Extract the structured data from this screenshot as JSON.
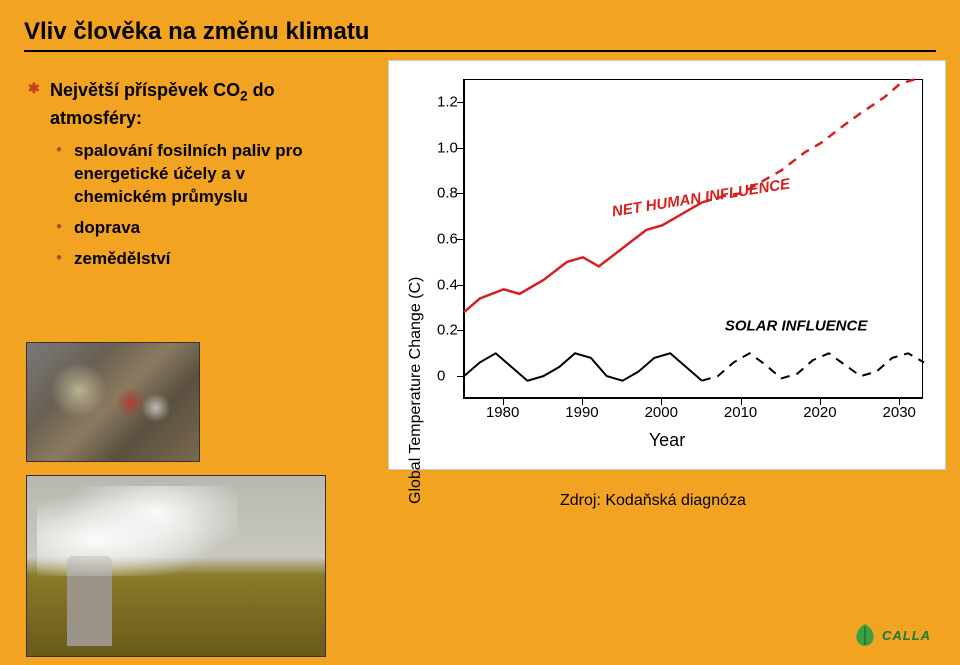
{
  "title": "Vliv člověka na změnu klimatu",
  "bullets": {
    "main": "Největší příspěvek CO",
    "main_sub": "2",
    "main_tail": " do atmosféry:",
    "items": [
      "spalování fosilních paliv pro energetické účely  a v chemickém průmyslu",
      "doprava",
      "zemědělství"
    ]
  },
  "chart": {
    "type": "line",
    "ylabel": "Global Temperature Change (C)",
    "xlabel": "Year",
    "xlim": [
      1975,
      2033
    ],
    "ylim": [
      -0.1,
      1.3
    ],
    "xticks": [
      1980,
      1990,
      2000,
      2010,
      2020,
      2030
    ],
    "yticks": [
      0,
      0.2,
      0.4,
      0.6,
      0.8,
      1.0,
      1.2
    ],
    "yticks_labels": [
      "0",
      "0.2",
      "0.4",
      "0.6",
      "0.8",
      "1.0",
      "1.2"
    ],
    "background_color": "#ffffff",
    "axis_color": "#000000",
    "series": [
      {
        "name": "NET HUMAN INFLUENCE",
        "color": "#d62020",
        "label_pos": {
          "x": 2005,
          "y": 0.78,
          "rotate": -9
        },
        "points": [
          [
            1975,
            0.28
          ],
          [
            1977,
            0.34
          ],
          [
            1980,
            0.38
          ],
          [
            1982,
            0.36
          ],
          [
            1985,
            0.42
          ],
          [
            1988,
            0.5
          ],
          [
            1990,
            0.52
          ],
          [
            1992,
            0.48
          ],
          [
            1995,
            0.56
          ],
          [
            1998,
            0.64
          ],
          [
            2000,
            0.66
          ],
          [
            2003,
            0.72
          ],
          [
            2005,
            0.76
          ]
        ],
        "points_dashed": [
          [
            2005,
            0.76
          ],
          [
            2008,
            0.79
          ],
          [
            2010,
            0.8
          ],
          [
            2013,
            0.86
          ],
          [
            2015,
            0.9
          ],
          [
            2018,
            0.98
          ],
          [
            2020,
            1.02
          ],
          [
            2023,
            1.1
          ],
          [
            2025,
            1.15
          ],
          [
            2028,
            1.22
          ],
          [
            2030,
            1.28
          ],
          [
            2032,
            1.3
          ]
        ],
        "line_width": 2.5
      },
      {
        "name": "SOLAR INFLUENCE",
        "color": "#000000",
        "label_pos": {
          "x": 2017,
          "y": 0.22,
          "rotate": 0
        },
        "points": [
          [
            1975,
            0.0
          ],
          [
            1977,
            0.06
          ],
          [
            1979,
            0.1
          ],
          [
            1981,
            0.04
          ],
          [
            1983,
            -0.02
          ],
          [
            1985,
            0.0
          ],
          [
            1987,
            0.04
          ],
          [
            1989,
            0.1
          ],
          [
            1991,
            0.08
          ],
          [
            1993,
            0.0
          ],
          [
            1995,
            -0.02
          ],
          [
            1997,
            0.02
          ],
          [
            1999,
            0.08
          ],
          [
            2001,
            0.1
          ],
          [
            2003,
            0.04
          ],
          [
            2005,
            -0.02
          ]
        ],
        "points_dashed": [
          [
            2005,
            -0.02
          ],
          [
            2007,
            0.0
          ],
          [
            2009,
            0.06
          ],
          [
            2011,
            0.1
          ],
          [
            2013,
            0.05
          ],
          [
            2015,
            -0.01
          ],
          [
            2017,
            0.01
          ],
          [
            2019,
            0.07
          ],
          [
            2021,
            0.1
          ],
          [
            2023,
            0.05
          ],
          [
            2025,
            0.0
          ],
          [
            2027,
            0.02
          ],
          [
            2029,
            0.08
          ],
          [
            2031,
            0.1
          ],
          [
            2033,
            0.06
          ]
        ],
        "line_width": 2
      }
    ]
  },
  "source_label": "Zdroj: Kodaňská diagnóza",
  "logo_text": "CALLA"
}
